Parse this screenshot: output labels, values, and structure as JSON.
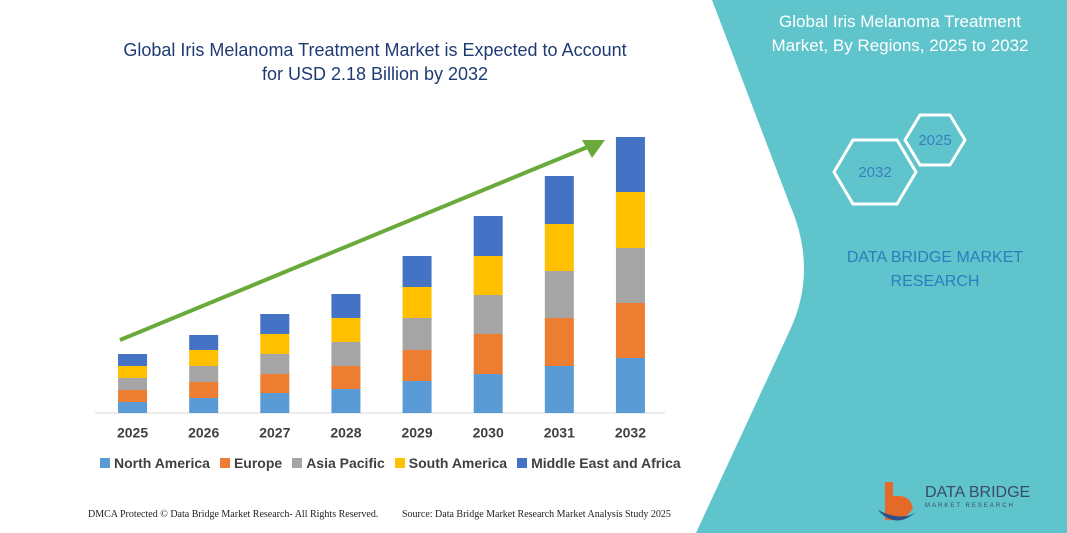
{
  "chart_data": {
    "type": "bar",
    "stacked": true,
    "title": "Global Iris Melanoma Treatment Market is Expected to Account\nfor USD 2.18 Billion by 2032",
    "categories": [
      "2025",
      "2026",
      "2027",
      "2028",
      "2029",
      "2030",
      "2031",
      "2032"
    ],
    "series": [
      {
        "name": "North America",
        "color": "#5b9bd5",
        "values": [
          11,
          15,
          20,
          24,
          32,
          39,
          47,
          55
        ]
      },
      {
        "name": "Europe",
        "color": "#ed7d31",
        "values": [
          12,
          16,
          19,
          23,
          31,
          40,
          48,
          55
        ]
      },
      {
        "name": "Asia Pacific",
        "color": "#a5a5a5",
        "values": [
          12,
          16,
          20,
          24,
          32,
          39,
          47,
          55
        ]
      },
      {
        "name": "South America",
        "color": "#ffc000",
        "values": [
          12,
          16,
          20,
          24,
          31,
          39,
          47,
          56
        ]
      },
      {
        "name": "Middle East and Africa",
        "color": "#4472c4",
        "values": [
          12,
          15,
          20,
          24,
          31,
          40,
          48,
          55
        ]
      }
    ],
    "ylim": [
      0,
      300
    ]
  },
  "panel": {
    "title": "Global Iris Melanoma Treatment\nMarket, By Regions, 2025 to 2032",
    "hexagons": [
      "2025",
      "2032"
    ],
    "brand": "DATA BRIDGE MARKET\nRESEARCH"
  },
  "footer": {
    "left": "DMCA Protected © Data Bridge Market Research-  All Rights Reserved.",
    "right": "Source: Data Bridge Market Research  Market Analysis Study 2025"
  },
  "logo": {
    "name": "DATA BRIDGE",
    "tagline": "MARKET RESEARCH"
  }
}
